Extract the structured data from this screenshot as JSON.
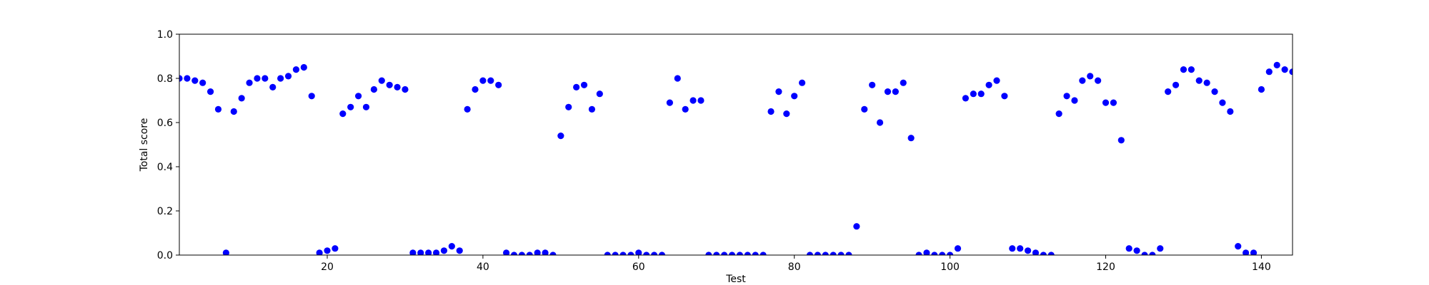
{
  "chart_data": {
    "type": "scatter",
    "title": "",
    "xlabel": "Test",
    "ylabel": "Total score",
    "xlim": [
      1,
      144
    ],
    "ylim": [
      0.0,
      1.0
    ],
    "xticks": [
      20,
      40,
      60,
      80,
      100,
      120,
      140
    ],
    "yticks": [
      0.0,
      0.2,
      0.4,
      0.6,
      0.8,
      1.0
    ],
    "xtick_labels": [
      "20",
      "40",
      "60",
      "80",
      "100",
      "120",
      "140"
    ],
    "ytick_labels": [
      "0.0",
      "0.2",
      "0.4",
      "0.6",
      "0.8",
      "1.0"
    ],
    "grid": false,
    "legend": "none",
    "marker_color": "#0000ff",
    "series": [
      {
        "x": [
          1,
          2,
          3,
          4,
          5,
          6,
          7,
          8,
          9,
          10,
          11,
          12,
          13,
          14,
          15,
          16,
          17,
          18,
          19,
          20,
          21,
          22,
          23,
          24,
          25,
          26,
          27,
          28,
          29,
          30,
          31,
          32,
          33,
          34,
          35,
          36,
          37,
          38,
          39,
          40,
          41,
          42,
          43,
          44,
          45,
          46,
          47,
          48,
          49,
          50,
          51,
          52,
          53,
          54,
          55,
          56,
          57,
          58,
          59,
          60,
          61,
          62,
          63,
          64,
          65,
          66,
          67,
          68,
          69,
          70,
          71,
          72,
          73,
          74,
          75,
          76,
          77,
          78,
          79,
          80,
          81,
          82,
          83,
          84,
          85,
          86,
          87,
          88,
          89,
          90,
          91,
          92,
          93,
          94,
          95,
          96,
          97,
          98,
          99,
          100,
          101,
          102,
          103,
          104,
          105,
          106,
          107,
          108,
          109,
          110,
          111,
          112,
          113,
          114,
          115,
          116,
          117,
          118,
          119,
          120,
          121,
          122,
          123,
          124,
          125,
          126,
          127,
          128,
          129,
          130,
          131,
          132,
          133,
          134,
          135,
          136,
          137,
          138,
          139,
          140,
          141,
          142,
          143,
          144
        ],
        "y": [
          0.8,
          0.8,
          0.79,
          0.78,
          0.74,
          0.66,
          0.01,
          0.65,
          0.71,
          0.78,
          0.8,
          0.8,
          0.76,
          0.8,
          0.81,
          0.84,
          0.85,
          0.72,
          0.01,
          0.02,
          0.03,
          0.64,
          0.67,
          0.72,
          0.67,
          0.75,
          0.79,
          0.77,
          0.76,
          0.75,
          0.01,
          0.01,
          0.01,
          0.01,
          0.02,
          0.04,
          0.02,
          0.66,
          0.75,
          0.79,
          0.79,
          0.77,
          0.01,
          0.0,
          0.0,
          0.0,
          0.01,
          0.01,
          0.0,
          0.54,
          0.67,
          0.76,
          0.77,
          0.66,
          0.73,
          0.0,
          0.0,
          0.0,
          0.0,
          0.01,
          0.0,
          0.0,
          0.0,
          0.69,
          0.8,
          0.66,
          0.7,
          0.7,
          0.0,
          0.0,
          0.0,
          0.0,
          0.0,
          0.0,
          0.0,
          0.0,
          0.65,
          0.74,
          0.64,
          0.72,
          0.78,
          0.0,
          0.0,
          0.0,
          0.0,
          0.0,
          0.0,
          0.13,
          0.66,
          0.77,
          0.6,
          0.74,
          0.74,
          0.78,
          0.53,
          0.0,
          0.01,
          0.0,
          0.0,
          0.0,
          0.03,
          0.71,
          0.73,
          0.73,
          0.77,
          0.79,
          0.72,
          0.03,
          0.03,
          0.02,
          0.01,
          0.0,
          0.0,
          0.64,
          0.72,
          0.7,
          0.79,
          0.81,
          0.79,
          0.69,
          0.69,
          0.52,
          0.03,
          0.02,
          0.0,
          0.0,
          0.03,
          0.74,
          0.77,
          0.84,
          0.84,
          0.79,
          0.78,
          0.74,
          0.69,
          0.65,
          0.04,
          0.01,
          0.01,
          0.75,
          0.83,
          0.86,
          0.84,
          0.83
        ]
      }
    ]
  }
}
